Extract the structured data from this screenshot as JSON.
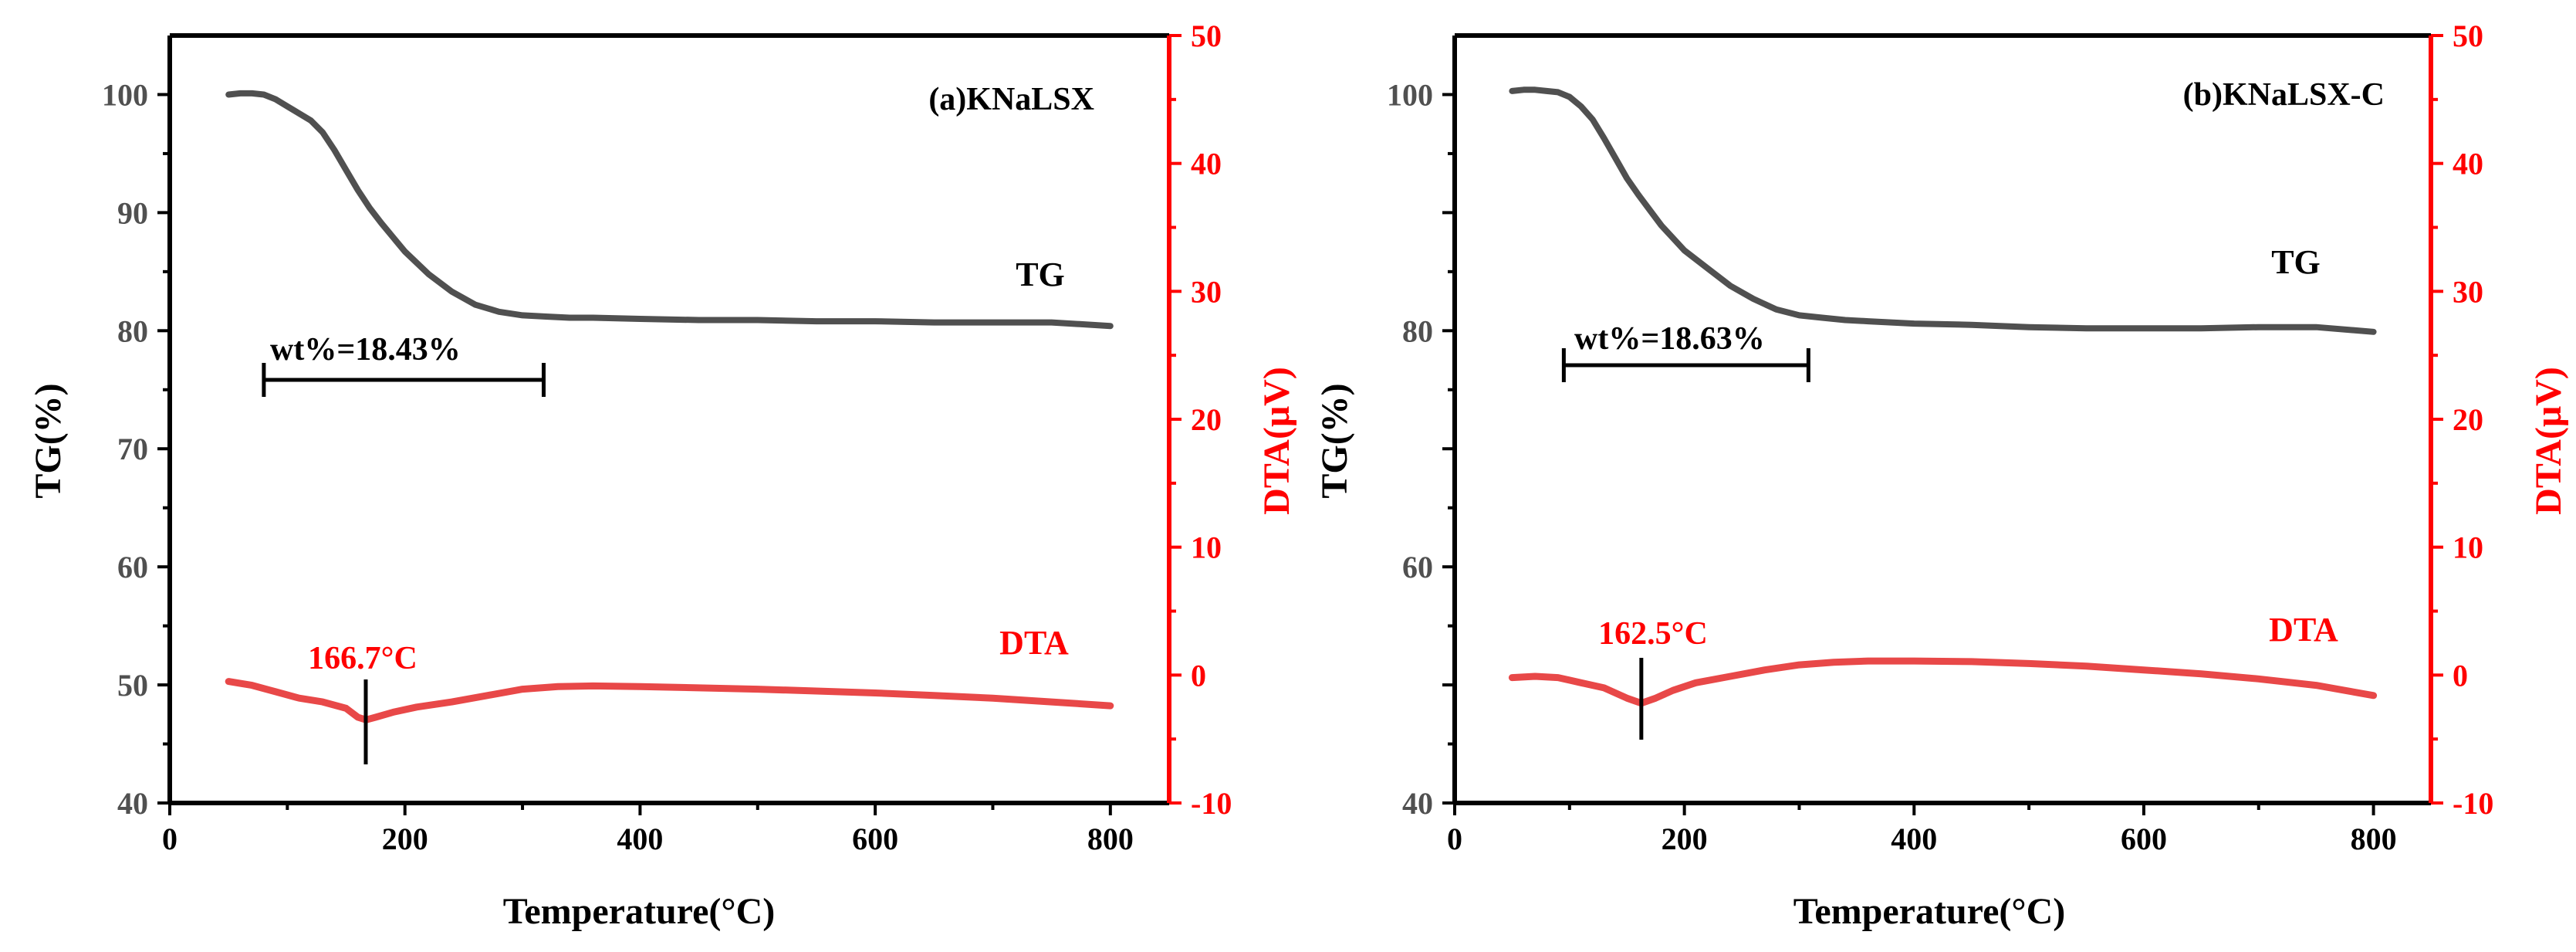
{
  "colors": {
    "tg_line": "#505050",
    "dta_line": "#e84848",
    "dta_axis": "#ff0000",
    "axis": "#000000",
    "marker": "#000000"
  },
  "chart_data": [
    {
      "type": "line",
      "title": "(a)KNaLSX",
      "xlabel": "Temperature(°C)",
      "ylabel": "TG(%)",
      "y2label": "DTA(μV)",
      "xlim": [
        0,
        850
      ],
      "ylim": [
        40,
        105
      ],
      "y2lim": [
        -10,
        50
      ],
      "xticks": [
        "0",
        "200",
        "400",
        "600",
        "800"
      ],
      "yticks": [
        "40",
        "50",
        "60",
        "70",
        "80",
        "90",
        "100"
      ],
      "y2ticks": [
        "-10",
        "0",
        "10",
        "20",
        "30",
        "40",
        "50"
      ],
      "series": [
        {
          "name": "TG",
          "axis": "left",
          "x": [
            50,
            60,
            70,
            80,
            90,
            100,
            110,
            120,
            130,
            140,
            150,
            160,
            170,
            180,
            200,
            220,
            240,
            260,
            280,
            300,
            320,
            340,
            360,
            400,
            450,
            500,
            550,
            600,
            650,
            700,
            750,
            800
          ],
          "y": [
            100,
            100.1,
            100.1,
            100,
            99.6,
            99,
            98.4,
            97.8,
            96.8,
            95.3,
            93.6,
            91.9,
            90.4,
            89.1,
            86.7,
            84.8,
            83.3,
            82.2,
            81.6,
            81.3,
            81.2,
            81.1,
            81.1,
            81,
            80.9,
            80.9,
            80.8,
            80.8,
            80.7,
            80.7,
            80.7,
            80.4
          ]
        },
        {
          "name": "DTA",
          "axis": "right",
          "x": [
            50,
            70,
            90,
            110,
            130,
            150,
            160,
            167,
            175,
            190,
            210,
            240,
            270,
            300,
            330,
            360,
            400,
            450,
            500,
            550,
            600,
            650,
            700,
            750,
            800
          ],
          "y": [
            -0.5,
            -0.8,
            -1.3,
            -1.8,
            -2.1,
            -2.6,
            -3.3,
            -3.5,
            -3.3,
            -2.9,
            -2.5,
            -2.1,
            -1.6,
            -1.1,
            -0.9,
            -0.85,
            -0.9,
            -1.0,
            -1.1,
            -1.25,
            -1.4,
            -1.6,
            -1.8,
            -2.1,
            -2.4
          ]
        }
      ],
      "annotations": {
        "tg_label": "TG",
        "dta_label": "DTA",
        "weight_loss": "wt%=18.43%",
        "peak": "166.7°C",
        "weight_loss_range": [
          80,
          318
        ],
        "peak_x": 166.7
      }
    },
    {
      "type": "line",
      "title": "(b)KNaLSX-C",
      "xlabel": "Temperature(°C)",
      "ylabel": "TG(%)",
      "y2label": "DTA(μV)",
      "xlim": [
        0,
        850
      ],
      "ylim": [
        40,
        105
      ],
      "y2lim": [
        -10,
        50
      ],
      "xticks": [
        "0",
        "200",
        "400",
        "600",
        "800"
      ],
      "yticks": [
        "40",
        "60",
        "80",
        "100"
      ],
      "y2ticks": [
        "-10",
        "0",
        "10",
        "20",
        "30",
        "40",
        "50"
      ],
      "series": [
        {
          "name": "TG",
          "axis": "left",
          "x": [
            50,
            60,
            70,
            80,
            90,
            100,
            110,
            120,
            130,
            140,
            150,
            160,
            170,
            180,
            200,
            220,
            240,
            260,
            280,
            300,
            320,
            340,
            360,
            400,
            450,
            500,
            550,
            600,
            650,
            700,
            750,
            800
          ],
          "y": [
            100.3,
            100.4,
            100.4,
            100.3,
            100.2,
            99.8,
            99,
            97.9,
            96.3,
            94.6,
            92.9,
            91.5,
            90.2,
            88.9,
            86.8,
            85.3,
            83.8,
            82.7,
            81.8,
            81.3,
            81.1,
            80.9,
            80.8,
            80.6,
            80.5,
            80.3,
            80.2,
            80.2,
            80.2,
            80.3,
            80.3,
            79.9
          ]
        },
        {
          "name": "DTA",
          "axis": "right",
          "x": [
            50,
            70,
            90,
            110,
            130,
            150,
            162.5,
            175,
            190,
            210,
            240,
            270,
            300,
            330,
            360,
            400,
            450,
            500,
            550,
            600,
            650,
            700,
            750,
            800
          ],
          "y": [
            -0.2,
            -0.1,
            -0.2,
            -0.6,
            -1.0,
            -1.8,
            -2.2,
            -1.8,
            -1.2,
            -0.6,
            -0.1,
            0.4,
            0.8,
            1.0,
            1.1,
            1.1,
            1.05,
            0.9,
            0.7,
            0.4,
            0.1,
            -0.3,
            -0.8,
            -1.6
          ]
        }
      ],
      "annotations": {
        "tg_label": "TG",
        "dta_label": "DTA",
        "weight_loss": "wt%=18.63%",
        "peak": "162.5°C",
        "weight_loss_range": [
          95,
          308
        ],
        "peak_x": 162.5
      }
    }
  ]
}
